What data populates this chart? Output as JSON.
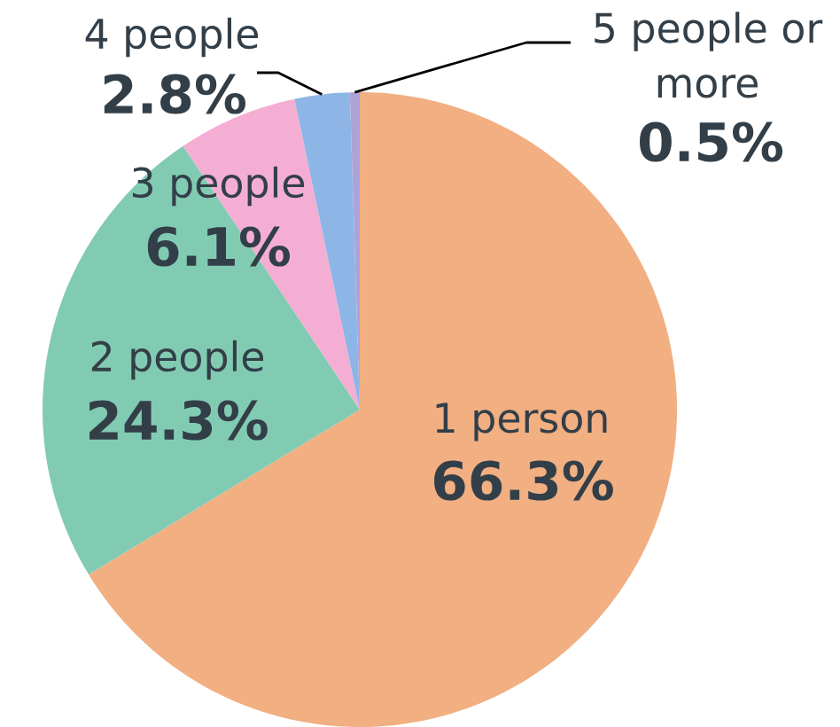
{
  "chart_data": {
    "type": "pie",
    "categories": [
      "1 person",
      "2 people",
      "3 people",
      "4 people",
      "5 people or more"
    ],
    "values": [
      66.3,
      24.3,
      6.1,
      2.8,
      0.5
    ],
    "colors": [
      "#f1af82",
      "#82cbb3",
      "#f4aed4",
      "#8db6e6",
      "#aca4d8"
    ],
    "value_labels": [
      "66.3%",
      "24.3%",
      "6.1%",
      "2.8%",
      "0.5%"
    ]
  }
}
